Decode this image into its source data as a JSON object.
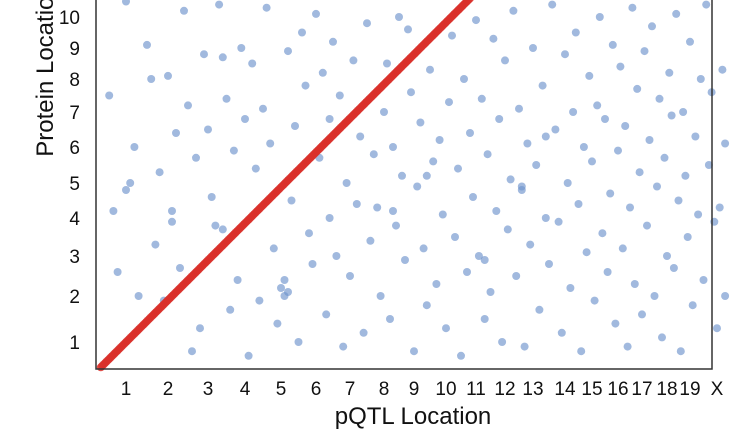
{
  "chart_data": {
    "type": "scatter",
    "title": "",
    "xlabel": "pQTL Location",
    "ylabel": "Protein Location",
    "x_tick_labels": [
      "1",
      "2",
      "3",
      "4",
      "5",
      "6",
      "7",
      "8",
      "9",
      "10",
      "11",
      "12",
      "13",
      "14",
      "15",
      "16",
      "17",
      "18",
      "19",
      "X"
    ],
    "y_tick_labels": [
      "1",
      "2",
      "3",
      "4",
      "5",
      "6",
      "7",
      "8",
      "9",
      "10"
    ],
    "xlim": [
      0.4,
      20.4
    ],
    "ylim": [
      0.4,
      10.6
    ],
    "grid": false,
    "colors": {
      "trans_points": "#6f93cc",
      "cis_line": "#d9302a"
    },
    "series": [
      {
        "type": "line",
        "style": "dense dots along diagonal",
        "points": [
          [
            0.4,
            0.45
          ],
          [
            10.8,
            10.6
          ]
        ]
      },
      {
        "type": "scatter",
        "points": [
          [
            0.6,
            7.5
          ],
          [
            0.7,
            4.2
          ],
          [
            0.8,
            2.6
          ],
          [
            1.0,
            10.5
          ],
          [
            1.0,
            4.8
          ],
          [
            1.1,
            5.0
          ],
          [
            1.2,
            6.0
          ],
          [
            1.3,
            2.0
          ],
          [
            1.5,
            9.1
          ],
          [
            1.6,
            8.0
          ],
          [
            1.7,
            3.3
          ],
          [
            1.8,
            5.3
          ],
          [
            1.9,
            1.9
          ],
          [
            2.0,
            8.1
          ],
          [
            2.1,
            4.2
          ],
          [
            2.2,
            6.4
          ],
          [
            2.3,
            2.7
          ],
          [
            2.4,
            10.2
          ],
          [
            2.5,
            7.2
          ],
          [
            2.6,
            0.8
          ],
          [
            2.7,
            5.7
          ],
          [
            2.8,
            1.3
          ],
          [
            2.9,
            8.8
          ],
          [
            3.0,
            6.5
          ],
          [
            3.1,
            4.6
          ],
          [
            3.2,
            3.8
          ],
          [
            3.3,
            10.4
          ],
          [
            3.4,
            8.7
          ],
          [
            3.5,
            7.4
          ],
          [
            3.6,
            1.7
          ],
          [
            3.7,
            5.9
          ],
          [
            3.8,
            2.4
          ],
          [
            3.9,
            9.0
          ],
          [
            4.0,
            6.8
          ],
          [
            4.1,
            0.7
          ],
          [
            4.2,
            8.5
          ],
          [
            4.3,
            5.4
          ],
          [
            4.4,
            1.9
          ],
          [
            4.5,
            7.1
          ],
          [
            4.6,
            10.3
          ],
          [
            4.7,
            6.1
          ],
          [
            4.8,
            3.2
          ],
          [
            4.9,
            1.4
          ],
          [
            5.0,
            2.2
          ],
          [
            5.1,
            2.0
          ],
          [
            5.1,
            2.4
          ],
          [
            5.2,
            8.9
          ],
          [
            5.3,
            4.5
          ],
          [
            5.4,
            6.6
          ],
          [
            5.5,
            1.0
          ],
          [
            5.6,
            9.5
          ],
          [
            5.7,
            7.8
          ],
          [
            5.8,
            3.6
          ],
          [
            5.9,
            2.8
          ],
          [
            6.0,
            10.1
          ],
          [
            6.1,
            5.7
          ],
          [
            6.2,
            8.2
          ],
          [
            6.3,
            1.6
          ],
          [
            6.4,
            4.0
          ],
          [
            6.5,
            9.2
          ],
          [
            6.6,
            3.0
          ],
          [
            6.7,
            7.5
          ],
          [
            6.8,
            0.9
          ],
          [
            6.9,
            5.0
          ],
          [
            7.0,
            2.5
          ],
          [
            7.1,
            8.6
          ],
          [
            7.2,
            4.4
          ],
          [
            7.3,
            6.3
          ],
          [
            7.4,
            1.2
          ],
          [
            7.5,
            9.8
          ],
          [
            7.6,
            3.4
          ],
          [
            7.7,
            5.8
          ],
          [
            7.8,
            4.3
          ],
          [
            7.9,
            2.0
          ],
          [
            8.0,
            7.0
          ],
          [
            8.1,
            8.5
          ],
          [
            8.2,
            1.5
          ],
          [
            8.3,
            6.0
          ],
          [
            8.4,
            3.8
          ],
          [
            8.5,
            10.0
          ],
          [
            8.6,
            5.2
          ],
          [
            8.7,
            2.9
          ],
          [
            8.8,
            9.6
          ],
          [
            8.9,
            7.6
          ],
          [
            9.0,
            0.8
          ],
          [
            9.1,
            4.9
          ],
          [
            9.2,
            6.7
          ],
          [
            9.3,
            3.2
          ],
          [
            9.4,
            1.8
          ],
          [
            9.5,
            8.3
          ],
          [
            9.6,
            5.6
          ],
          [
            9.7,
            2.3
          ],
          [
            9.8,
            6.2
          ],
          [
            9.9,
            4.1
          ],
          [
            10.0,
            1.3
          ],
          [
            10.1,
            7.3
          ],
          [
            10.2,
            9.4
          ],
          [
            10.3,
            3.5
          ],
          [
            10.4,
            5.4
          ],
          [
            10.5,
            0.7
          ],
          [
            10.6,
            8.0
          ],
          [
            10.7,
            2.6
          ],
          [
            10.8,
            6.4
          ],
          [
            10.9,
            4.6
          ],
          [
            11.0,
            9.9
          ],
          [
            11.1,
            3.0
          ],
          [
            11.2,
            7.4
          ],
          [
            11.3,
            1.5
          ],
          [
            11.4,
            5.8
          ],
          [
            11.5,
            2.1
          ],
          [
            11.6,
            9.3
          ],
          [
            11.7,
            4.2
          ],
          [
            11.8,
            6.8
          ],
          [
            11.9,
            1.0
          ],
          [
            12.0,
            8.6
          ],
          [
            12.1,
            3.7
          ],
          [
            12.2,
            5.1
          ],
          [
            12.3,
            10.2
          ],
          [
            12.4,
            2.5
          ],
          [
            12.5,
            7.1
          ],
          [
            12.6,
            4.8
          ],
          [
            12.7,
            0.9
          ],
          [
            12.8,
            6.1
          ],
          [
            12.9,
            3.3
          ],
          [
            13.0,
            9.0
          ],
          [
            13.1,
            5.5
          ],
          [
            13.2,
            1.7
          ],
          [
            13.3,
            7.8
          ],
          [
            13.4,
            4.0
          ],
          [
            13.5,
            2.8
          ],
          [
            13.6,
            10.4
          ],
          [
            13.7,
            6.5
          ],
          [
            13.8,
            3.9
          ],
          [
            13.9,
            1.2
          ],
          [
            14.0,
            8.8
          ],
          [
            14.1,
            5.0
          ],
          [
            14.2,
            2.2
          ],
          [
            14.3,
            7.0
          ],
          [
            14.4,
            9.5
          ],
          [
            14.5,
            4.4
          ],
          [
            14.6,
            0.8
          ],
          [
            14.7,
            6.0
          ],
          [
            14.8,
            3.1
          ],
          [
            14.9,
            8.1
          ],
          [
            15.0,
            5.6
          ],
          [
            15.1,
            1.9
          ],
          [
            15.2,
            7.2
          ],
          [
            15.3,
            10.0
          ],
          [
            15.4,
            3.6
          ],
          [
            15.5,
            6.8
          ],
          [
            15.6,
            2.6
          ],
          [
            15.7,
            4.7
          ],
          [
            15.8,
            9.1
          ],
          [
            15.9,
            1.4
          ],
          [
            16.0,
            5.9
          ],
          [
            16.1,
            8.4
          ],
          [
            16.2,
            3.2
          ],
          [
            16.3,
            6.6
          ],
          [
            16.4,
            0.9
          ],
          [
            16.5,
            4.3
          ],
          [
            16.6,
            10.3
          ],
          [
            16.7,
            2.3
          ],
          [
            16.8,
            7.7
          ],
          [
            16.9,
            5.3
          ],
          [
            17.0,
            1.6
          ],
          [
            17.1,
            8.9
          ],
          [
            17.2,
            3.8
          ],
          [
            17.3,
            6.2
          ],
          [
            17.4,
            9.7
          ],
          [
            17.5,
            2.0
          ],
          [
            17.6,
            4.9
          ],
          [
            17.7,
            7.4
          ],
          [
            17.8,
            1.1
          ],
          [
            17.9,
            5.7
          ],
          [
            18.0,
            3.0
          ],
          [
            18.1,
            8.2
          ],
          [
            18.2,
            6.9
          ],
          [
            18.3,
            2.7
          ],
          [
            18.4,
            10.1
          ],
          [
            18.5,
            4.5
          ],
          [
            18.6,
            0.8
          ],
          [
            18.7,
            7.0
          ],
          [
            18.8,
            5.2
          ],
          [
            18.9,
            3.5
          ],
          [
            19.0,
            9.2
          ],
          [
            19.1,
            1.8
          ],
          [
            19.2,
            6.3
          ],
          [
            19.3,
            4.1
          ],
          [
            19.4,
            8.0
          ],
          [
            19.5,
            2.4
          ],
          [
            19.6,
            10.4
          ],
          [
            19.7,
            5.5
          ],
          [
            19.8,
            7.6
          ],
          [
            19.9,
            3.9
          ],
          [
            20.0,
            1.3
          ],
          [
            20.1,
            4.3
          ],
          [
            20.2,
            8.3
          ],
          [
            20.3,
            6.1
          ],
          [
            20.3,
            2.0
          ],
          [
            3.4,
            3.7
          ],
          [
            5.2,
            2.1
          ],
          [
            12.6,
            4.9
          ],
          [
            11.3,
            2.9
          ],
          [
            9.4,
            5.2
          ],
          [
            2.1,
            3.9
          ],
          [
            6.4,
            6.8
          ],
          [
            8.3,
            4.2
          ],
          [
            13.4,
            6.3
          ]
        ]
      }
    ]
  }
}
